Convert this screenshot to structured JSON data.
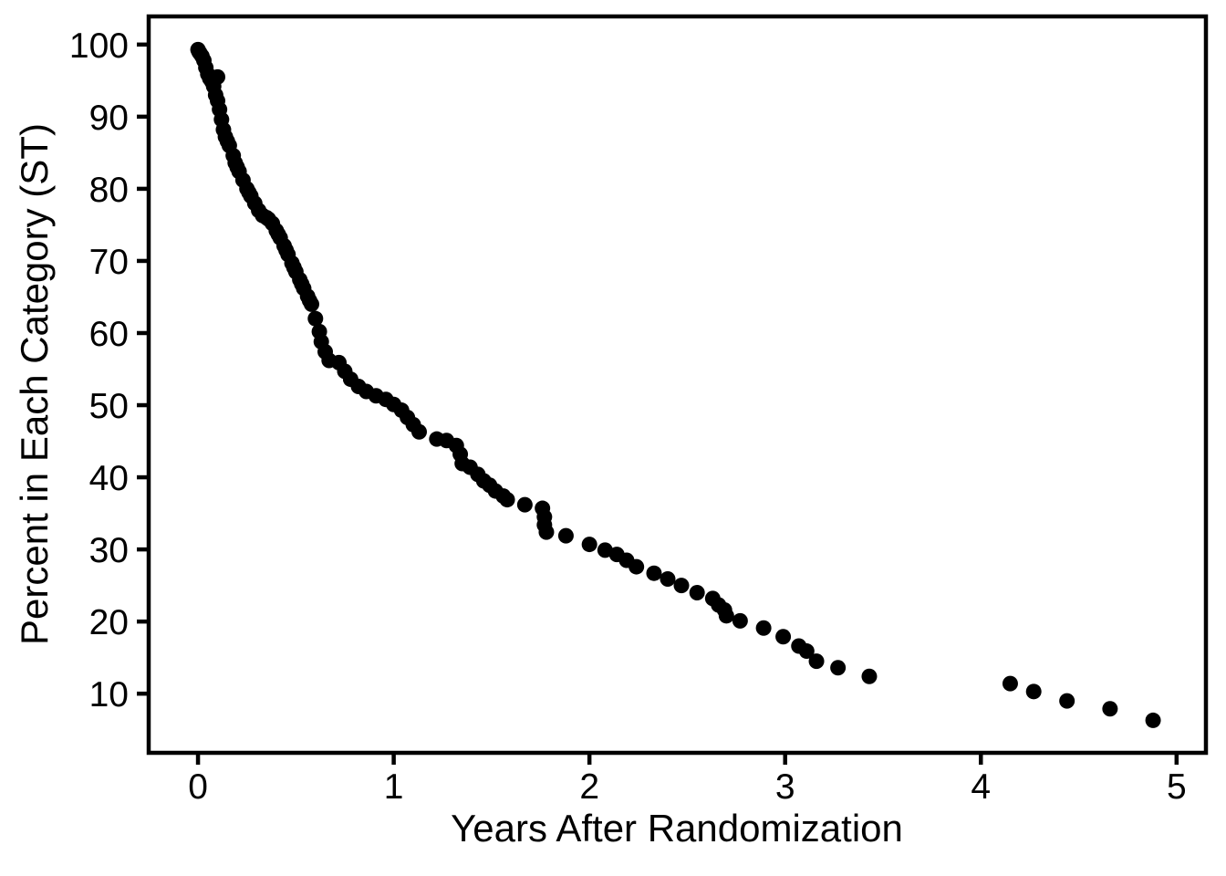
{
  "figure": {
    "background": "#ffffff",
    "foreground": "#000000"
  },
  "chart_data": {
    "type": "scatter",
    "title": "",
    "xlabel": "Years After Randomization",
    "ylabel": "Percent in Each Category (ST)",
    "x_ticks": [
      0,
      1,
      2,
      3,
      4,
      5
    ],
    "y_ticks": [
      10,
      20,
      30,
      40,
      50,
      60,
      70,
      80,
      90,
      100
    ],
    "xlim": [
      -0.252,
      5.15
    ],
    "ylim": [
      1.8,
      103.9
    ],
    "grid": false,
    "legend": null,
    "marker": {
      "shape": "circle",
      "color": "#000000",
      "radius_px": 8.5
    },
    "series": [
      {
        "name": "ST",
        "points": [
          [
            0.0,
            99.3
          ],
          [
            0.005,
            99.0
          ],
          [
            0.01,
            98.8
          ],
          [
            0.02,
            98.4
          ],
          [
            0.03,
            97.8
          ],
          [
            0.04,
            96.8
          ],
          [
            0.05,
            95.9
          ],
          [
            0.06,
            95.3
          ],
          [
            0.07,
            94.9
          ],
          [
            0.08,
            94.2
          ],
          [
            0.09,
            93.0
          ],
          [
            0.1,
            95.5
          ],
          [
            0.1,
            92.2
          ],
          [
            0.11,
            91.0
          ],
          [
            0.12,
            89.6
          ],
          [
            0.13,
            88.2
          ],
          [
            0.14,
            87.2
          ],
          [
            0.15,
            86.6
          ],
          [
            0.16,
            86.0
          ],
          [
            0.18,
            84.6
          ],
          [
            0.19,
            83.6
          ],
          [
            0.2,
            83.0
          ],
          [
            0.21,
            82.4
          ],
          [
            0.23,
            81.2
          ],
          [
            0.25,
            80.0
          ],
          [
            0.26,
            79.5
          ],
          [
            0.27,
            79.0
          ],
          [
            0.29,
            78.0
          ],
          [
            0.31,
            77.0
          ],
          [
            0.33,
            76.3
          ],
          [
            0.35,
            76.0
          ],
          [
            0.36,
            75.8
          ],
          [
            0.38,
            75.2
          ],
          [
            0.4,
            74.2
          ],
          [
            0.41,
            73.7
          ],
          [
            0.42,
            73.2
          ],
          [
            0.44,
            72.1
          ],
          [
            0.45,
            71.5
          ],
          [
            0.46,
            70.9
          ],
          [
            0.48,
            69.7
          ],
          [
            0.49,
            69.1
          ],
          [
            0.5,
            68.5
          ],
          [
            0.52,
            67.4
          ],
          [
            0.53,
            66.8
          ],
          [
            0.54,
            66.2
          ],
          [
            0.56,
            65.1
          ],
          [
            0.57,
            64.5
          ],
          [
            0.58,
            64.0
          ],
          [
            0.6,
            62.0
          ],
          [
            0.62,
            60.2
          ],
          [
            0.63,
            58.8
          ],
          [
            0.65,
            57.4
          ],
          [
            0.67,
            56.2
          ],
          [
            0.72,
            55.9
          ],
          [
            0.75,
            54.7
          ],
          [
            0.78,
            53.6
          ],
          [
            0.82,
            52.6
          ],
          [
            0.86,
            51.9
          ],
          [
            0.91,
            51.3
          ],
          [
            0.96,
            50.8
          ],
          [
            1.0,
            50.1
          ],
          [
            1.04,
            49.3
          ],
          [
            1.07,
            48.3
          ],
          [
            1.1,
            47.3
          ],
          [
            1.13,
            46.3
          ],
          [
            1.22,
            45.3
          ],
          [
            1.27,
            45.1
          ],
          [
            1.32,
            44.4
          ],
          [
            1.34,
            43.2
          ],
          [
            1.35,
            41.9
          ],
          [
            1.39,
            41.4
          ],
          [
            1.43,
            40.4
          ],
          [
            1.46,
            39.5
          ],
          [
            1.49,
            38.9
          ],
          [
            1.52,
            38.1
          ],
          [
            1.56,
            37.4
          ],
          [
            1.58,
            36.9
          ],
          [
            1.67,
            36.2
          ],
          [
            1.76,
            35.7
          ],
          [
            1.77,
            34.5
          ],
          [
            1.77,
            33.4
          ],
          [
            1.78,
            32.4
          ],
          [
            1.88,
            31.9
          ],
          [
            2.0,
            30.7
          ],
          [
            2.08,
            29.9
          ],
          [
            2.14,
            29.3
          ],
          [
            2.19,
            28.5
          ],
          [
            2.24,
            27.6
          ],
          [
            2.33,
            26.7
          ],
          [
            2.4,
            25.9
          ],
          [
            2.47,
            25.0
          ],
          [
            2.55,
            24.0
          ],
          [
            2.63,
            23.2
          ],
          [
            2.66,
            22.3
          ],
          [
            2.69,
            21.6
          ],
          [
            2.7,
            20.8
          ],
          [
            2.77,
            20.1
          ],
          [
            2.89,
            19.1
          ],
          [
            2.99,
            17.9
          ],
          [
            3.07,
            16.6
          ],
          [
            3.11,
            15.9
          ],
          [
            3.16,
            14.5
          ],
          [
            3.27,
            13.6
          ],
          [
            3.43,
            12.4
          ],
          [
            4.15,
            11.4
          ],
          [
            4.27,
            10.3
          ],
          [
            4.44,
            9.0
          ],
          [
            4.66,
            7.9
          ],
          [
            4.88,
            6.3
          ]
        ]
      }
    ]
  }
}
